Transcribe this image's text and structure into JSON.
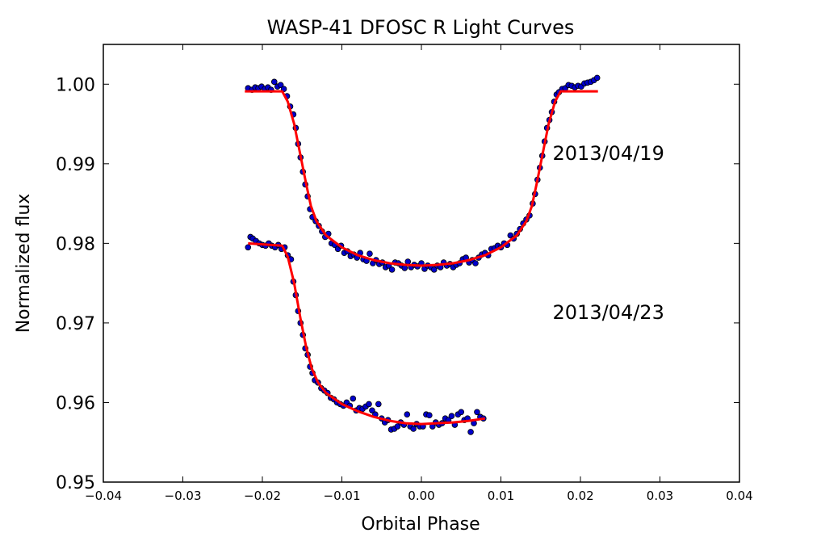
{
  "chart_data": {
    "type": "scatter",
    "title": "WASP-41 DFOSC R Light Curves",
    "xlabel": "Orbital Phase",
    "ylabel": "Normalized flux",
    "xlim": [
      -0.04,
      0.04
    ],
    "ylim": [
      0.95,
      1.005
    ],
    "xticks": [
      -0.04,
      -0.03,
      -0.02,
      -0.01,
      0.0,
      0.01,
      0.02,
      0.03,
      0.04
    ],
    "xtick_labels": [
      "−0.04",
      "−0.03",
      "−0.02",
      "−0.01",
      "0.00",
      "0.01",
      "0.02",
      "0.03",
      "0.04"
    ],
    "yticks": [
      0.95,
      0.96,
      0.97,
      0.98,
      0.99,
      1.0
    ],
    "ytick_labels": [
      "0.95",
      "0.96",
      "0.97",
      "0.98",
      "0.99",
      "1.00"
    ],
    "grid": false,
    "marker_color": "#0000cc",
    "model_color": "#ff0000",
    "annotations": [
      {
        "text": "2013/04/19",
        "x": 0.0165,
        "y": 0.9905
      },
      {
        "text": "2013/04/23",
        "x": 0.0165,
        "y": 0.9705
      }
    ],
    "series": [
      {
        "name": "2013/04/19",
        "points": [
          [
            -0.0218,
            0.9995
          ],
          [
            -0.0213,
            0.9993
          ],
          [
            -0.0209,
            0.9996
          ],
          [
            -0.0205,
            0.9995
          ],
          [
            -0.0201,
            0.9997
          ],
          [
            -0.0197,
            0.9994
          ],
          [
            -0.0193,
            0.9996
          ],
          [
            -0.0189,
            0.9993
          ],
          [
            -0.0185,
            1.0003
          ],
          [
            -0.0181,
            0.9997
          ],
          [
            -0.0177,
            0.9999
          ],
          [
            -0.0173,
            0.9994
          ],
          [
            -0.0169,
            0.9985
          ],
          [
            -0.0165,
            0.9972
          ],
          [
            -0.0161,
            0.9962
          ],
          [
            -0.0158,
            0.9945
          ],
          [
            -0.0155,
            0.9925
          ],
          [
            -0.0152,
            0.9908
          ],
          [
            -0.0149,
            0.989
          ],
          [
            -0.0146,
            0.9874
          ],
          [
            -0.0143,
            0.9859
          ],
          [
            -0.014,
            0.9843
          ],
          [
            -0.0137,
            0.9833
          ],
          [
            -0.0133,
            0.9828
          ],
          [
            -0.0129,
            0.9822
          ],
          [
            -0.0125,
            0.9815
          ],
          [
            -0.0121,
            0.9808
          ],
          [
            -0.0117,
            0.9812
          ],
          [
            -0.0113,
            0.98
          ],
          [
            -0.0109,
            0.9798
          ],
          [
            -0.0105,
            0.9793
          ],
          [
            -0.0101,
            0.9797
          ],
          [
            -0.0097,
            0.9788
          ],
          [
            -0.0093,
            0.979
          ],
          [
            -0.0089,
            0.9784
          ],
          [
            -0.0085,
            0.9786
          ],
          [
            -0.0081,
            0.9782
          ],
          [
            -0.0077,
            0.9788
          ],
          [
            -0.0073,
            0.978
          ],
          [
            -0.0069,
            0.9778
          ],
          [
            -0.0065,
            0.9787
          ],
          [
            -0.0061,
            0.9775
          ],
          [
            -0.0057,
            0.9779
          ],
          [
            -0.0053,
            0.9774
          ],
          [
            -0.0049,
            0.9776
          ],
          [
            -0.0045,
            0.977
          ],
          [
            -0.0041,
            0.9772
          ],
          [
            -0.0037,
            0.9767
          ],
          [
            -0.0033,
            0.9776
          ],
          [
            -0.0029,
            0.9775
          ],
          [
            -0.0025,
            0.9772
          ],
          [
            -0.0021,
            0.9769
          ],
          [
            -0.0017,
            0.9777
          ],
          [
            -0.0013,
            0.977
          ],
          [
            -0.0009,
            0.9773
          ],
          [
            -0.0005,
            0.9771
          ],
          [
            0.0,
            0.9775
          ],
          [
            0.0004,
            0.9768
          ],
          [
            0.0008,
            0.9772
          ],
          [
            0.0012,
            0.977
          ],
          [
            0.0016,
            0.9767
          ],
          [
            0.002,
            0.9772
          ],
          [
            0.0024,
            0.977
          ],
          [
            0.0028,
            0.9776
          ],
          [
            0.0032,
            0.9772
          ],
          [
            0.0036,
            0.9774
          ],
          [
            0.004,
            0.977
          ],
          [
            0.0044,
            0.9773
          ],
          [
            0.0048,
            0.9775
          ],
          [
            0.0052,
            0.978
          ],
          [
            0.0056,
            0.9782
          ],
          [
            0.006,
            0.9776
          ],
          [
            0.0064,
            0.9779
          ],
          [
            0.0068,
            0.9775
          ],
          [
            0.0072,
            0.9782
          ],
          [
            0.0076,
            0.9786
          ],
          [
            0.008,
            0.9788
          ],
          [
            0.0084,
            0.9785
          ],
          [
            0.0088,
            0.9793
          ],
          [
            0.0092,
            0.9794
          ],
          [
            0.0096,
            0.9797
          ],
          [
            0.01,
            0.9795
          ],
          [
            0.0104,
            0.98
          ],
          [
            0.0108,
            0.9798
          ],
          [
            0.0112,
            0.981
          ],
          [
            0.0116,
            0.9806
          ],
          [
            0.012,
            0.9812
          ],
          [
            0.0124,
            0.9818
          ],
          [
            0.0128,
            0.9825
          ],
          [
            0.0132,
            0.983
          ],
          [
            0.0136,
            0.9835
          ],
          [
            0.014,
            0.985
          ],
          [
            0.0143,
            0.9862
          ],
          [
            0.0146,
            0.988
          ],
          [
            0.0149,
            0.9895
          ],
          [
            0.0152,
            0.991
          ],
          [
            0.0155,
            0.9928
          ],
          [
            0.0158,
            0.9945
          ],
          [
            0.0161,
            0.9955
          ],
          [
            0.0164,
            0.9965
          ],
          [
            0.0167,
            0.9978
          ],
          [
            0.017,
            0.9987
          ],
          [
            0.0173,
            0.999
          ],
          [
            0.0177,
            0.9994
          ],
          [
            0.0181,
            0.9995
          ],
          [
            0.0185,
            0.9999
          ],
          [
            0.0189,
            0.9998
          ],
          [
            0.0193,
            0.9996
          ],
          [
            0.0197,
            0.9998
          ],
          [
            0.0201,
            0.9997
          ],
          [
            0.0205,
            1.0001
          ],
          [
            0.0209,
            1.0002
          ],
          [
            0.0213,
            1.0003
          ],
          [
            0.0217,
            1.0005
          ],
          [
            0.0221,
            1.0008
          ]
        ],
        "model": [
          [
            -0.0222,
            0.9991
          ],
          [
            -0.0175,
            0.9991
          ],
          [
            -0.0168,
            0.9978
          ],
          [
            -0.016,
            0.995
          ],
          [
            -0.0152,
            0.991
          ],
          [
            -0.0145,
            0.9875
          ],
          [
            -0.0139,
            0.9847
          ],
          [
            -0.0132,
            0.9828
          ],
          [
            -0.012,
            0.981
          ],
          [
            -0.01,
            0.9795
          ],
          [
            -0.008,
            0.9785
          ],
          [
            -0.006,
            0.9779
          ],
          [
            -0.004,
            0.9775
          ],
          [
            -0.002,
            0.9773
          ],
          [
            0.0,
            0.9772
          ],
          [
            0.002,
            0.9773
          ],
          [
            0.004,
            0.9775
          ],
          [
            0.006,
            0.9779
          ],
          [
            0.008,
            0.9785
          ],
          [
            0.01,
            0.9795
          ],
          [
            0.012,
            0.981
          ],
          [
            0.0132,
            0.9828
          ],
          [
            0.0139,
            0.9847
          ],
          [
            0.0145,
            0.9875
          ],
          [
            0.0152,
            0.991
          ],
          [
            0.016,
            0.995
          ],
          [
            0.0168,
            0.9978
          ],
          [
            0.0175,
            0.9991
          ],
          [
            0.0222,
            0.9991
          ]
        ]
      },
      {
        "name": "2013/04/23",
        "points": [
          [
            -0.0218,
            0.9795
          ],
          [
            -0.0215,
            0.9808
          ],
          [
            -0.0212,
            0.9806
          ],
          [
            -0.0208,
            0.9803
          ],
          [
            -0.0204,
            0.98
          ],
          [
            -0.02,
            0.9798
          ],
          [
            -0.0196,
            0.9797
          ],
          [
            -0.0192,
            0.98
          ],
          [
            -0.0188,
            0.9797
          ],
          [
            -0.0184,
            0.9795
          ],
          [
            -0.018,
            0.9798
          ],
          [
            -0.0176,
            0.9793
          ],
          [
            -0.0172,
            0.9795
          ],
          [
            -0.0168,
            0.9785
          ],
          [
            -0.0164,
            0.978
          ],
          [
            -0.0161,
            0.9752
          ],
          [
            -0.0158,
            0.9735
          ],
          [
            -0.0155,
            0.9715
          ],
          [
            -0.0152,
            0.97
          ],
          [
            -0.0149,
            0.9685
          ],
          [
            -0.0146,
            0.9668
          ],
          [
            -0.0143,
            0.966
          ],
          [
            -0.014,
            0.9645
          ],
          [
            -0.0137,
            0.9637
          ],
          [
            -0.0134,
            0.9628
          ],
          [
            -0.013,
            0.9625
          ],
          [
            -0.0126,
            0.9618
          ],
          [
            -0.0122,
            0.9615
          ],
          [
            -0.0118,
            0.9612
          ],
          [
            -0.0114,
            0.9606
          ],
          [
            -0.011,
            0.9604
          ],
          [
            -0.0106,
            0.96
          ],
          [
            -0.0102,
            0.9598
          ],
          [
            -0.0098,
            0.9596
          ],
          [
            -0.0094,
            0.96
          ],
          [
            -0.009,
            0.9596
          ],
          [
            -0.0086,
            0.9605
          ],
          [
            -0.0082,
            0.959
          ],
          [
            -0.0078,
            0.9593
          ],
          [
            -0.0074,
            0.9592
          ],
          [
            -0.007,
            0.9595
          ],
          [
            -0.0066,
            0.9598
          ],
          [
            -0.0062,
            0.959
          ],
          [
            -0.0058,
            0.9585
          ],
          [
            -0.0054,
            0.9598
          ],
          [
            -0.005,
            0.958
          ],
          [
            -0.0046,
            0.9575
          ],
          [
            -0.0042,
            0.9578
          ],
          [
            -0.0038,
            0.9566
          ],
          [
            -0.0034,
            0.9567
          ],
          [
            -0.003,
            0.957
          ],
          [
            -0.0026,
            0.9575
          ],
          [
            -0.0022,
            0.9572
          ],
          [
            -0.0018,
            0.9585
          ],
          [
            -0.0014,
            0.957
          ],
          [
            -0.001,
            0.9567
          ],
          [
            -0.0006,
            0.9573
          ],
          [
            -0.0002,
            0.957
          ],
          [
            0.0002,
            0.957
          ],
          [
            0.0006,
            0.9585
          ],
          [
            0.001,
            0.9584
          ],
          [
            0.0014,
            0.957
          ],
          [
            0.0018,
            0.9575
          ],
          [
            0.0022,
            0.9572
          ],
          [
            0.0026,
            0.9574
          ],
          [
            0.003,
            0.958
          ],
          [
            0.0034,
            0.9578
          ],
          [
            0.0038,
            0.9583
          ],
          [
            0.0042,
            0.9572
          ],
          [
            0.0046,
            0.9585
          ],
          [
            0.005,
            0.9588
          ],
          [
            0.0054,
            0.9578
          ],
          [
            0.0058,
            0.958
          ],
          [
            0.0062,
            0.9563
          ],
          [
            0.0066,
            0.9574
          ],
          [
            0.007,
            0.9588
          ],
          [
            0.0074,
            0.9582
          ],
          [
            0.0078,
            0.958
          ]
        ],
        "model": [
          [
            -0.0218,
            0.98
          ],
          [
            -0.0175,
            0.9797
          ],
          [
            -0.0168,
            0.9783
          ],
          [
            -0.016,
            0.975
          ],
          [
            -0.0152,
            0.9705
          ],
          [
            -0.0145,
            0.967
          ],
          [
            -0.0138,
            0.9643
          ],
          [
            -0.013,
            0.9625
          ],
          [
            -0.012,
            0.9612
          ],
          [
            -0.01,
            0.9598
          ],
          [
            -0.008,
            0.9589
          ],
          [
            -0.006,
            0.9582
          ],
          [
            -0.004,
            0.9577
          ],
          [
            -0.002,
            0.9574
          ],
          [
            0.0,
            0.9573
          ],
          [
            0.002,
            0.9574
          ],
          [
            0.004,
            0.9575
          ],
          [
            0.006,
            0.9577
          ],
          [
            0.008,
            0.958
          ]
        ]
      }
    ]
  }
}
